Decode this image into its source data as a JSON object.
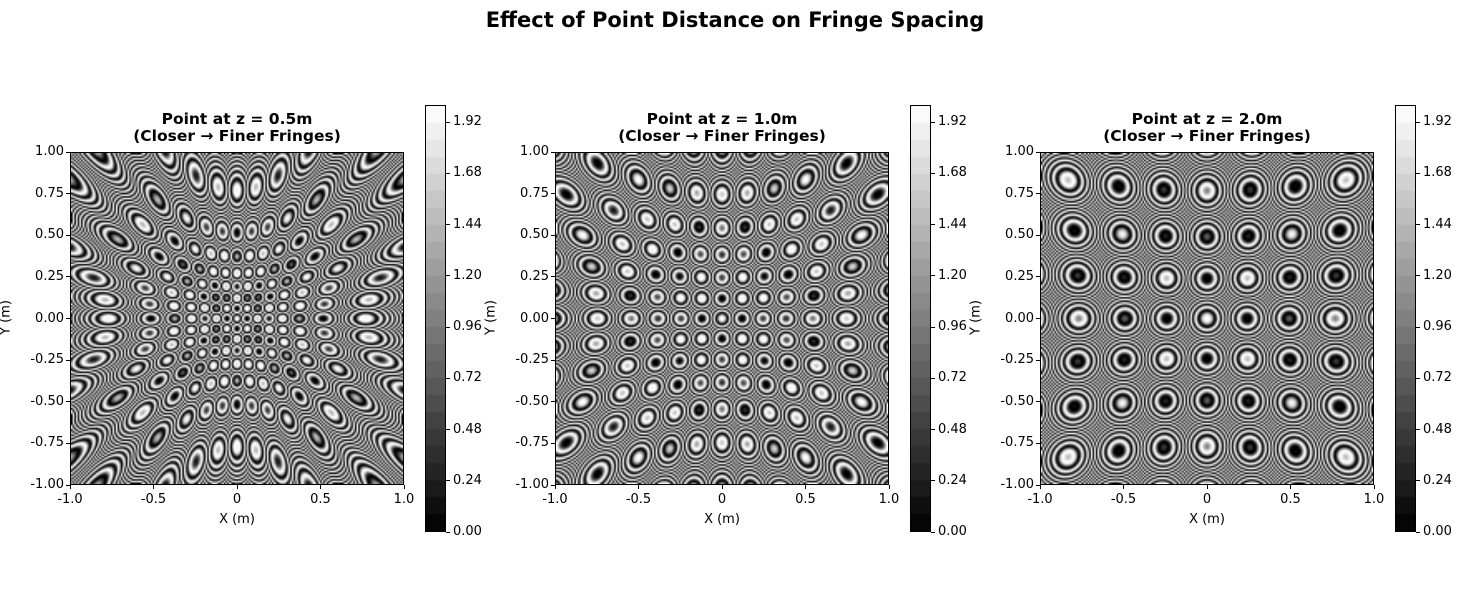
{
  "title": "Effect of Point Distance on Fringe Spacing",
  "colormap": "gray",
  "chart_data": [
    {
      "type": "heatmap",
      "title": "Point at z = 0.5m\n(Closer → Finer Fringes)",
      "title_lines": [
        "Point at z = 0.5m",
        "(Closer → Finer Fringes)"
      ],
      "point_z_m": 0.5,
      "xlabel": "X (m)",
      "ylabel": "Y (m)",
      "xlim": [
        -1.0,
        1.0
      ],
      "ylim": [
        -1.0,
        1.0
      ],
      "xticks": [
        "-1.0",
        "-0.5",
        "0",
        "0.5",
        "1.0"
      ],
      "yticks": [
        "1.00",
        "0.75",
        "0.50",
        "0.25",
        "0.00",
        "-0.25",
        "-0.50",
        "-0.75",
        "-1.00"
      ],
      "colorbar_range": [
        0.0,
        2.0
      ],
      "colorbar_ticks": [
        "1.92",
        "1.68",
        "1.44",
        "1.20",
        "0.96",
        "0.72",
        "0.48",
        "0.24",
        "0.00"
      ]
    },
    {
      "type": "heatmap",
      "title": "Point at z = 1.0m\n(Closer → Finer Fringes)",
      "title_lines": [
        "Point at z = 1.0m",
        "(Closer → Finer Fringes)"
      ],
      "point_z_m": 1.0,
      "xlabel": "X (m)",
      "ylabel": "Y (m)",
      "xlim": [
        -1.0,
        1.0
      ],
      "ylim": [
        -1.0,
        1.0
      ],
      "xticks": [
        "-1.0",
        "-0.5",
        "0",
        "0.5",
        "1.0"
      ],
      "yticks": [
        "1.00",
        "0.75",
        "0.50",
        "0.25",
        "0.00",
        "-0.25",
        "-0.50",
        "-0.75",
        "-1.00"
      ],
      "colorbar_range": [
        0.0,
        2.0
      ],
      "colorbar_ticks": [
        "1.92",
        "1.68",
        "1.44",
        "1.20",
        "0.96",
        "0.72",
        "0.48",
        "0.24",
        "0.00"
      ]
    },
    {
      "type": "heatmap",
      "title": "Point at z = 2.0m\n(Closer → Finer Fringes)",
      "title_lines": [
        "Point at z = 2.0m",
        "(Closer → Finer Fringes)"
      ],
      "point_z_m": 2.0,
      "xlabel": "X (m)",
      "ylabel": "Y (m)",
      "xlim": [
        -1.0,
        1.0
      ],
      "ylim": [
        -1.0,
        1.0
      ],
      "xticks": [
        "-1.0",
        "-0.5",
        "0",
        "0.5",
        "1.0"
      ],
      "yticks": [
        "1.00",
        "0.75",
        "0.50",
        "0.25",
        "0.00",
        "-0.25",
        "-0.50",
        "-0.75",
        "-1.00"
      ],
      "colorbar_range": [
        0.0,
        2.0
      ],
      "colorbar_ticks": [
        "1.92",
        "1.68",
        "1.44",
        "1.20",
        "0.96",
        "0.72",
        "0.48",
        "0.24",
        "0.00"
      ]
    }
  ]
}
